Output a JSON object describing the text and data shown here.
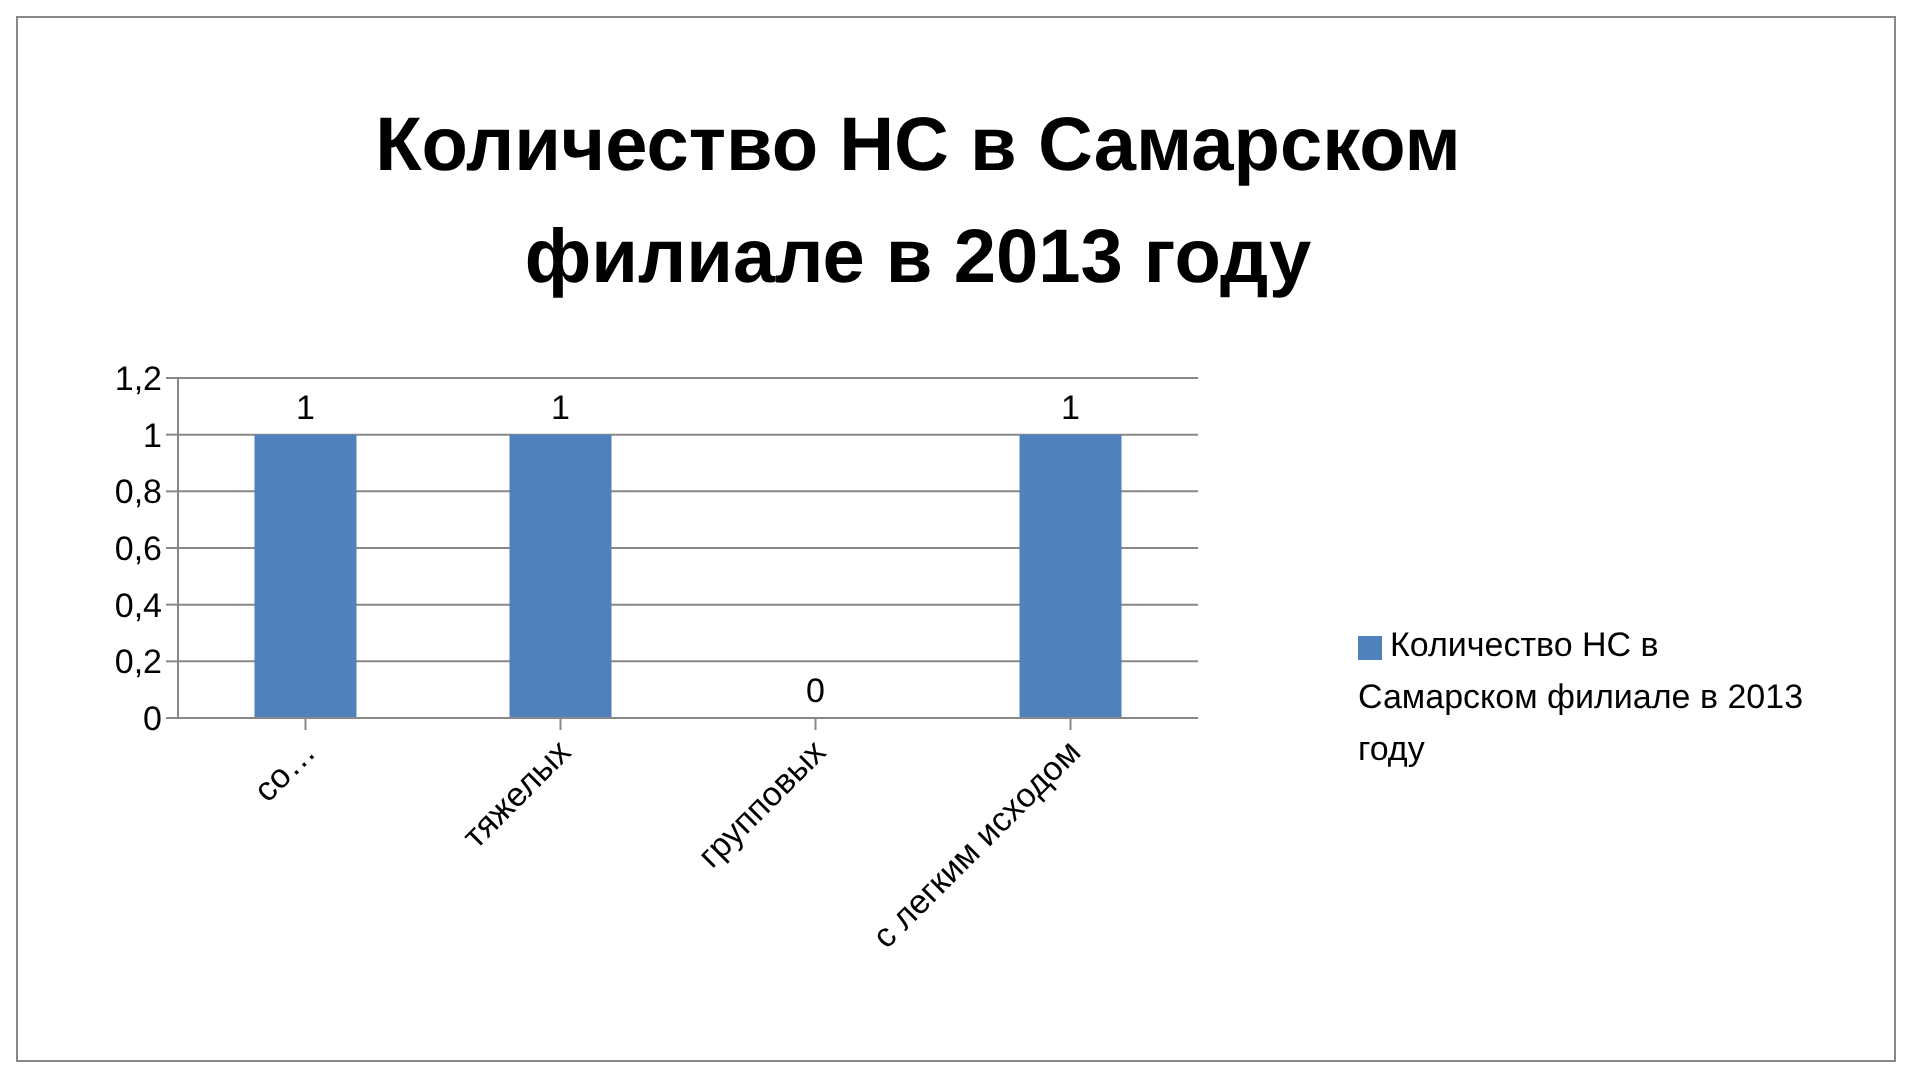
{
  "chart_data": {
    "type": "bar",
    "title": "Количество НС в Самарском филиале в 2013 году",
    "categories": [
      "со…",
      "тяжелых",
      "групповых",
      "с легким исходом"
    ],
    "series": [
      {
        "name": "Количество НС в Самарском филиале в 2013 году",
        "color": "#4f81bd",
        "values": [
          1,
          1,
          0,
          1
        ]
      }
    ],
    "ylim": [
      0,
      1.2
    ],
    "yticks": [
      0,
      {
        "value": 0.2,
        "label": "0,2"
      },
      {
        "value": 0.4,
        "label": "0,4"
      },
      {
        "value": 0.6,
        "label": "0,6"
      },
      {
        "value": 0.8,
        "label": "0,8"
      },
      1,
      {
        "value": 1.2,
        "label": "1,2"
      }
    ],
    "grid": "y",
    "legend": "right",
    "data_labels": true
  }
}
